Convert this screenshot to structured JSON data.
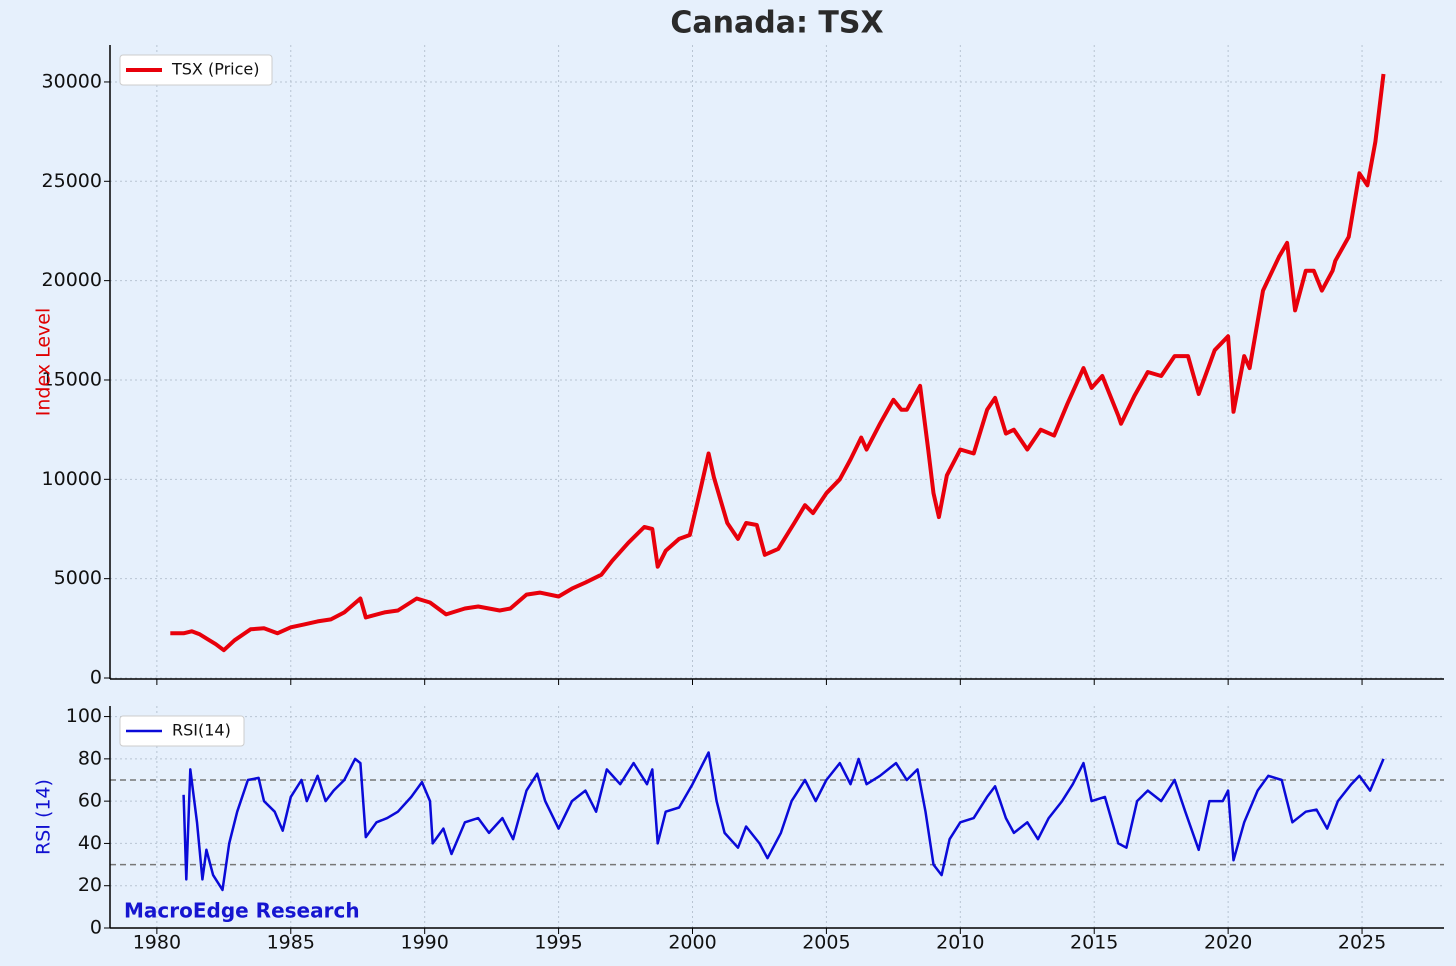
{
  "chart_data": [
    {
      "type": "line",
      "title": "Canada: TSX",
      "y_label": "Index Level",
      "y_label_color": "#e00000",
      "legend": "upper left",
      "grid": true,
      "xlim": [
        1978.25,
        2028.06
      ],
      "xticks": [
        1980,
        1985,
        1990,
        1995,
        2000,
        2005,
        2010,
        2015,
        2020,
        2025
      ],
      "ylim": [
        -50,
        31860
      ],
      "yticks": [
        0,
        5000,
        10000,
        15000,
        20000,
        25000,
        30000
      ],
      "x": [
        1980.5,
        1981.0,
        1981.3,
        1981.6,
        1981.9,
        1982.2,
        1982.5,
        1982.9,
        1983.5,
        1984.0,
        1984.5,
        1985.0,
        1985.5,
        1986.0,
        1986.5,
        1987.0,
        1987.6,
        1987.8,
        1988.5,
        1989.0,
        1989.7,
        1990.2,
        1990.8,
        1991.5,
        1992.0,
        1992.8,
        1993.2,
        1993.8,
        1994.3,
        1995.0,
        1995.5,
        1996.0,
        1996.6,
        1997.0,
        1997.6,
        1998.2,
        1998.5,
        1998.7,
        1999.0,
        1999.5,
        1999.9,
        2000.3,
        2000.6,
        2000.8,
        2001.3,
        2001.7,
        2002.0,
        2002.4,
        2002.7,
        2003.2,
        2003.8,
        2004.2,
        2004.5,
        2005.0,
        2005.5,
        2005.9,
        2006.3,
        2006.5,
        2007.0,
        2007.5,
        2007.8,
        2008.0,
        2008.5,
        2008.8,
        2009.0,
        2009.2,
        2009.5,
        2010.0,
        2010.5,
        2011.0,
        2011.3,
        2011.7,
        2012.0,
        2012.5,
        2013.0,
        2013.5,
        2014.0,
        2014.6,
        2014.9,
        2015.3,
        2015.9,
        2016.0,
        2016.5,
        2017.0,
        2017.5,
        2018.0,
        2018.5,
        2018.9,
        2019.5,
        2020.0,
        2020.2,
        2020.6,
        2020.8,
        2021.3,
        2021.9,
        2022.2,
        2022.5,
        2022.9,
        2023.2,
        2023.5,
        2023.9,
        2024.0,
        2024.5,
        2024.9,
        2025.2,
        2025.5,
        2025.8
      ],
      "series": [
        {
          "name": "TSX (Price)",
          "color": "#e8000b",
          "values": [
            2250,
            2250,
            2350,
            2200,
            1950,
            1700,
            1400,
            1900,
            2450,
            2500,
            2250,
            2550,
            2700,
            2850,
            2950,
            3300,
            4000,
            3050,
            3300,
            3400,
            4000,
            3800,
            3200,
            3500,
            3600,
            3400,
            3500,
            4200,
            4300,
            4100,
            4500,
            4800,
            5200,
            5900,
            6800,
            7600,
            7500,
            5600,
            6400,
            7000,
            7200,
            9500,
            11300,
            10100,
            7800,
            7000,
            7800,
            7700,
            6200,
            6500,
            7800,
            8700,
            8300,
            9300,
            10000,
            11000,
            12100,
            11500,
            12800,
            14000,
            13500,
            13500,
            14700,
            11500,
            9300,
            8100,
            10200,
            11500,
            11300,
            13500,
            14100,
            12300,
            12500,
            11500,
            12500,
            12200,
            13800,
            15600,
            14600,
            15200,
            13200,
            12800,
            14200,
            15400,
            15200,
            16200,
            16200,
            14300,
            16500,
            17200,
            13400,
            16200,
            15600,
            19500,
            21200,
            21900,
            18500,
            20500,
            20500,
            19500,
            20500,
            21000,
            22200,
            25400,
            24800,
            27000,
            30400
          ]
        }
      ]
    },
    {
      "type": "line",
      "y_label": "RSI (14)",
      "y_label_color": "#1010d0",
      "legend": "upper left",
      "grid": true,
      "reference_lines": [
        70,
        30
      ],
      "annotations": [
        "MacroEdge Research"
      ],
      "xlim": [
        1978.25,
        2028.06
      ],
      "xticks": [
        1980,
        1985,
        1990,
        1995,
        2000,
        2005,
        2010,
        2015,
        2020,
        2025
      ],
      "ylim": [
        0,
        105
      ],
      "yticks": [
        0,
        20,
        40,
        60,
        80,
        100
      ],
      "x": [
        1981.0,
        1981.1,
        1981.25,
        1981.5,
        1981.7,
        1981.85,
        1982.1,
        1982.45,
        1982.7,
        1983.0,
        1983.4,
        1983.8,
        1984.0,
        1984.4,
        1984.7,
        1985.0,
        1985.4,
        1985.6,
        1986.0,
        1986.3,
        1986.6,
        1987.0,
        1987.4,
        1987.6,
        1987.8,
        1988.2,
        1988.6,
        1989.0,
        1989.5,
        1989.9,
        1990.2,
        1990.3,
        1990.7,
        1991.0,
        1991.5,
        1992.0,
        1992.4,
        1992.9,
        1993.3,
        1993.8,
        1994.2,
        1994.5,
        1995.0,
        1995.5,
        1996.0,
        1996.4,
        1996.8,
        1997.3,
        1997.8,
        1998.3,
        1998.5,
        1998.7,
        1999.0,
        1999.5,
        2000.0,
        2000.4,
        2000.6,
        2000.9,
        2001.2,
        2001.7,
        2002.0,
        2002.5,
        2002.8,
        2003.3,
        2003.7,
        2004.2,
        2004.6,
        2005.0,
        2005.5,
        2005.9,
        2006.2,
        2006.5,
        2007.0,
        2007.6,
        2008.0,
        2008.4,
        2008.7,
        2009.0,
        2009.3,
        2009.6,
        2010.0,
        2010.5,
        2011.0,
        2011.3,
        2011.7,
        2012.0,
        2012.5,
        2012.9,
        2013.3,
        2013.8,
        2014.2,
        2014.6,
        2014.9,
        2015.4,
        2015.9,
        2016.2,
        2016.6,
        2017.0,
        2017.5,
        2018.0,
        2018.4,
        2018.9,
        2019.3,
        2019.8,
        2020.0,
        2020.2,
        2020.6,
        2021.1,
        2021.5,
        2022.0,
        2022.4,
        2022.9,
        2023.3,
        2023.7,
        2024.1,
        2024.6,
        2024.9,
        2025.3,
        2025.8
      ],
      "series": [
        {
          "name": "RSI(14)",
          "color": "#0a0ad8",
          "values": [
            63,
            23,
            75,
            50,
            23,
            37,
            25,
            18,
            40,
            55,
            70,
            71,
            60,
            55,
            46,
            62,
            70,
            60,
            72,
            60,
            65,
            70,
            80,
            78,
            43,
            50,
            52,
            55,
            62,
            69,
            60,
            40,
            47,
            35,
            50,
            52,
            45,
            52,
            42,
            65,
            73,
            60,
            47,
            60,
            65,
            55,
            75,
            68,
            78,
            68,
            75,
            40,
            55,
            57,
            68,
            78,
            83,
            60,
            45,
            38,
            48,
            40,
            33,
            45,
            60,
            70,
            60,
            70,
            78,
            68,
            80,
            68,
            72,
            78,
            70,
            75,
            55,
            30,
            25,
            42,
            50,
            52,
            62,
            67,
            52,
            45,
            50,
            42,
            52,
            60,
            68,
            78,
            60,
            62,
            40,
            38,
            60,
            65,
            60,
            70,
            55,
            37,
            60,
            60,
            65,
            32,
            50,
            65,
            72,
            70,
            50,
            55,
            56,
            47,
            60,
            68,
            72,
            65,
            80
          ]
        }
      ]
    }
  ]
}
